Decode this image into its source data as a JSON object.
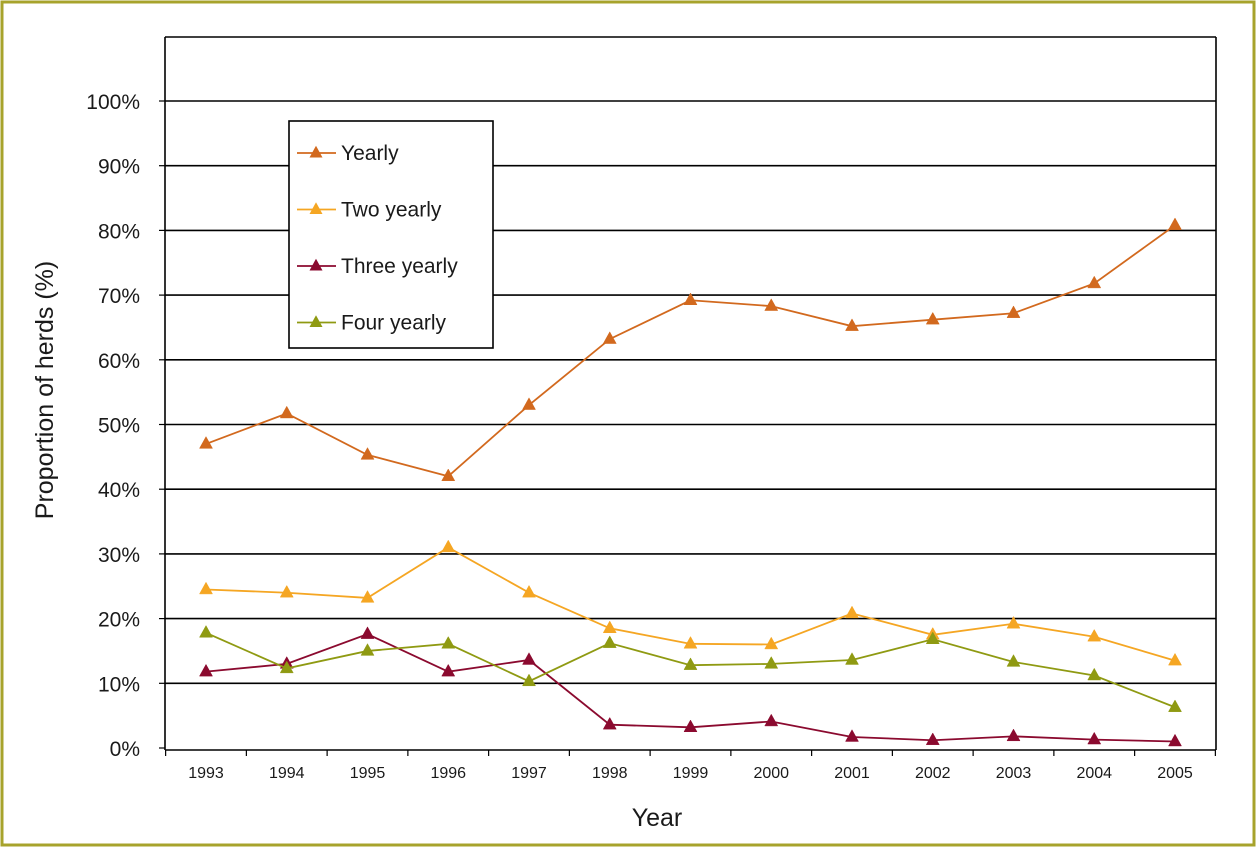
{
  "chart_data": {
    "type": "line",
    "title": "",
    "xlabel": "Year",
    "ylabel": "Proportion of herds (%)",
    "ylim": [
      0,
      100
    ],
    "yticks": [
      "0%",
      "10%",
      "20%",
      "30%",
      "40%",
      "50%",
      "60%",
      "70%",
      "80%",
      "90%",
      "100%"
    ],
    "ytick_values": [
      0,
      10,
      20,
      30,
      40,
      50,
      60,
      70,
      80,
      90,
      100
    ],
    "x": [
      "1993",
      "1994",
      "1995",
      "1996",
      "1997",
      "1998",
      "1999",
      "2000",
      "2001",
      "2002",
      "2003",
      "2004",
      "2005"
    ],
    "grid": "horizontal",
    "legend_position": "top-left",
    "marker": "triangle",
    "series": [
      {
        "name": "Yearly",
        "color": "#d2691e",
        "values": [
          47,
          51.7,
          45.3,
          42,
          53,
          63.2,
          69.2,
          68.3,
          65.2,
          66.2,
          67.2,
          71.8,
          80.8
        ]
      },
      {
        "name": "Two yearly",
        "color": "#f5a623",
        "values": [
          24.5,
          24,
          23.2,
          31,
          24,
          18.5,
          16.1,
          16,
          20.8,
          17.5,
          19.2,
          17.2,
          13.5
        ]
      },
      {
        "name": "Three yearly",
        "color": "#8b0a2f",
        "values": [
          11.8,
          13,
          17.6,
          11.8,
          13.6,
          3.6,
          3.2,
          4.1,
          1.7,
          1.2,
          1.8,
          1.3,
          1.0
        ]
      },
      {
        "name": "Four yearly",
        "color": "#8f9a12",
        "values": [
          17.8,
          12.3,
          15,
          16.1,
          10.3,
          16.2,
          12.8,
          13,
          13.6,
          16.8,
          13.3,
          11.2,
          6.3
        ]
      }
    ]
  },
  "style": {
    "frame_color": "#a7a32c",
    "grid_color": "#000000",
    "axis_color": "#000000"
  }
}
